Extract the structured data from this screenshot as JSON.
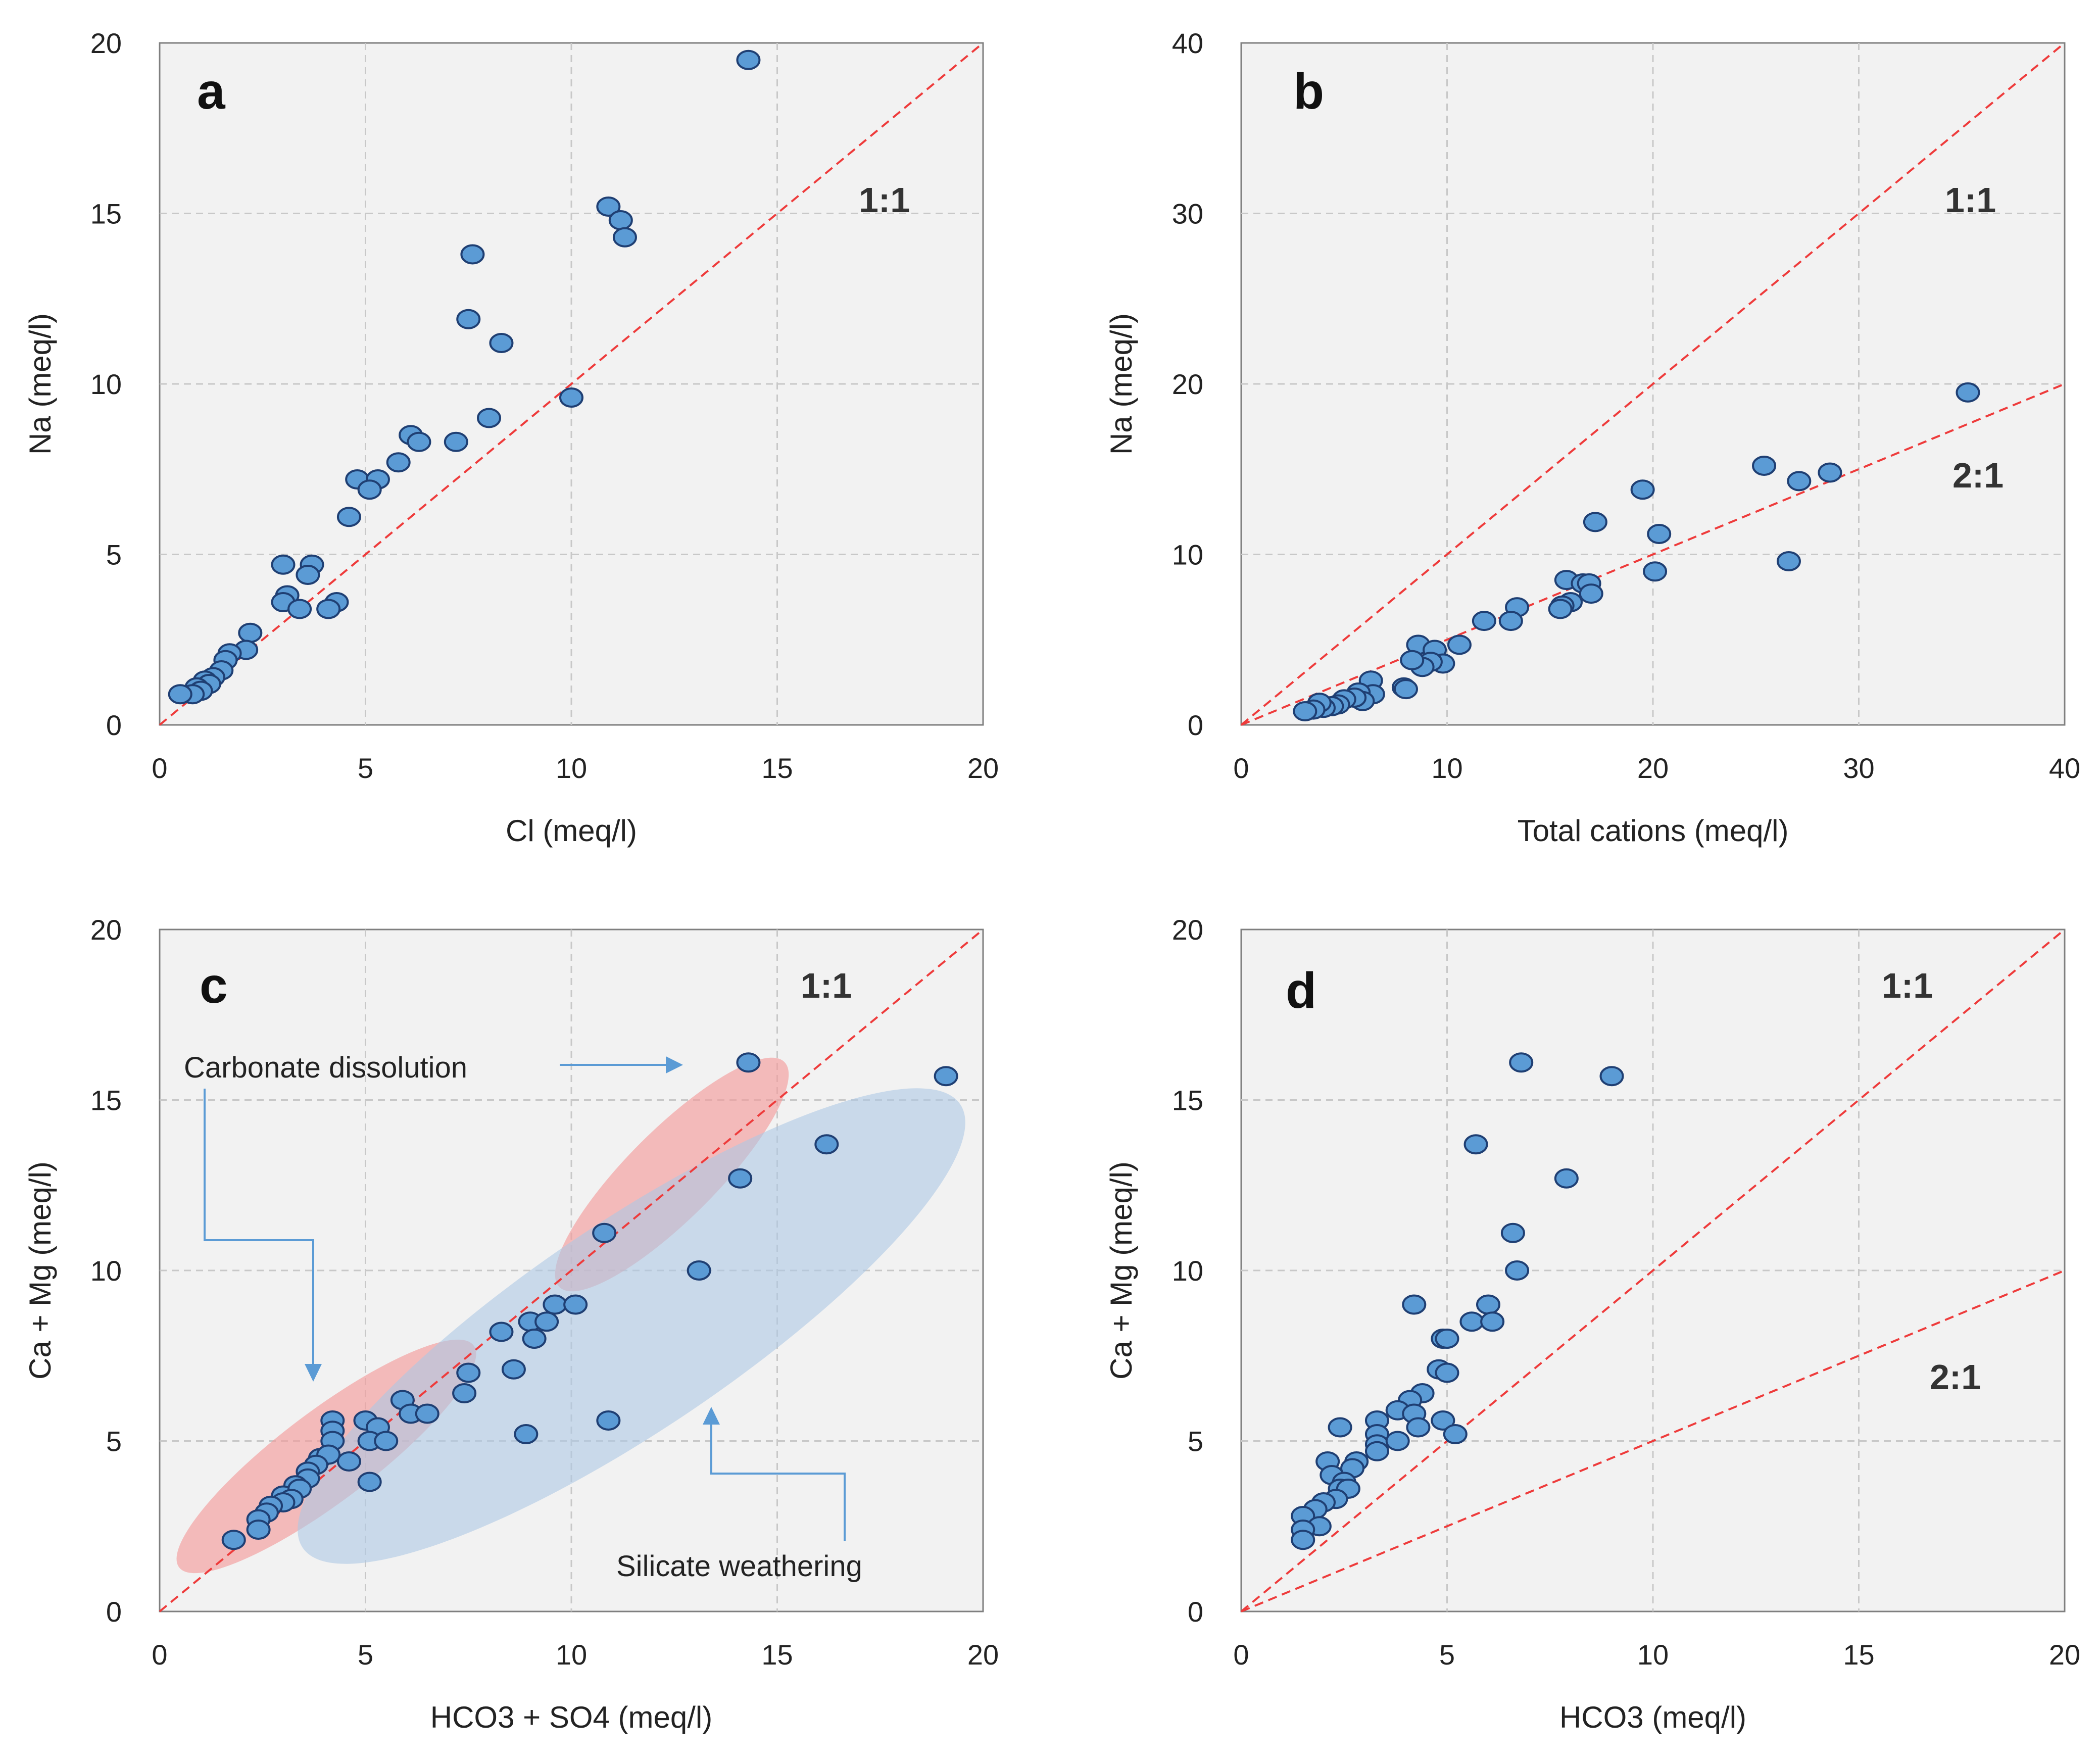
{
  "chart_data": [
    {
      "type": "scatter",
      "panel_label": "a",
      "xlabel": "Cl (meq/l)",
      "ylabel": "Na (meq/l)",
      "xlim": [
        0,
        20
      ],
      "ylim": [
        0,
        20
      ],
      "xticks": [
        "0",
        "5",
        "10",
        "15",
        "20"
      ],
      "yticks": [
        "0",
        "5",
        "10",
        "15",
        "20"
      ],
      "grid": true,
      "reference_lines": [
        {
          "label": "1:1",
          "slope": 1
        }
      ],
      "points": [
        [
          14.3,
          19.5
        ],
        [
          10.9,
          15.2
        ],
        [
          11.2,
          14.8
        ],
        [
          11.3,
          14.3
        ],
        [
          7.6,
          13.8
        ],
        [
          7.5,
          11.9
        ],
        [
          8.3,
          11.2
        ],
        [
          10.0,
          9.6
        ],
        [
          8.0,
          9.0
        ],
        [
          6.1,
          8.5
        ],
        [
          6.3,
          8.3
        ],
        [
          7.2,
          8.3
        ],
        [
          5.8,
          7.7
        ],
        [
          4.8,
          7.2
        ],
        [
          5.3,
          7.2
        ],
        [
          5.1,
          6.9
        ],
        [
          4.6,
          6.1
        ],
        [
          3.0,
          4.7
        ],
        [
          3.7,
          4.7
        ],
        [
          3.6,
          4.4
        ],
        [
          3.1,
          3.8
        ],
        [
          3.0,
          3.6
        ],
        [
          3.4,
          3.4
        ],
        [
          4.3,
          3.6
        ],
        [
          4.1,
          3.4
        ],
        [
          2.2,
          2.7
        ],
        [
          2.1,
          2.2
        ],
        [
          1.7,
          2.1
        ],
        [
          1.6,
          1.9
        ],
        [
          1.5,
          1.6
        ],
        [
          1.3,
          1.4
        ],
        [
          1.1,
          1.3
        ],
        [
          1.2,
          1.2
        ],
        [
          0.9,
          1.1
        ],
        [
          1.0,
          1.0
        ],
        [
          0.8,
          0.9
        ],
        [
          0.5,
          0.9
        ]
      ]
    },
    {
      "type": "scatter",
      "panel_label": "b",
      "xlabel": "Total cations (meq/l)",
      "ylabel": "Na (meq/l)",
      "xlim": [
        0,
        40
      ],
      "ylim": [
        0,
        40
      ],
      "xticks": [
        "0",
        "10",
        "20",
        "30",
        "40"
      ],
      "yticks": [
        "0",
        "10",
        "20",
        "30",
        "40"
      ],
      "grid": true,
      "reference_lines": [
        {
          "label": "1:1",
          "slope": 1
        },
        {
          "label": "2:1",
          "slope": 0.5
        }
      ],
      "points": [
        [
          35.3,
          19.5
        ],
        [
          25.4,
          15.2
        ],
        [
          28.6,
          14.8
        ],
        [
          27.1,
          14.3
        ],
        [
          19.5,
          13.8
        ],
        [
          17.2,
          11.9
        ],
        [
          20.3,
          11.2
        ],
        [
          26.6,
          9.6
        ],
        [
          20.1,
          9.0
        ],
        [
          15.8,
          8.5
        ],
        [
          16.6,
          8.3
        ],
        [
          16.9,
          8.3
        ],
        [
          17.0,
          7.7
        ],
        [
          16.0,
          7.2
        ],
        [
          15.6,
          7.0
        ],
        [
          15.5,
          6.8
        ],
        [
          13.4,
          6.9
        ],
        [
          13.1,
          6.1
        ],
        [
          11.8,
          6.1
        ],
        [
          10.6,
          4.7
        ],
        [
          8.6,
          4.7
        ],
        [
          9.4,
          4.4
        ],
        [
          9.8,
          3.6
        ],
        [
          9.2,
          3.7
        ],
        [
          8.8,
          3.4
        ],
        [
          8.3,
          3.8
        ],
        [
          7.9,
          2.2
        ],
        [
          8.0,
          2.1
        ],
        [
          6.3,
          2.6
        ],
        [
          6.4,
          1.8
        ],
        [
          5.7,
          1.9
        ],
        [
          5.9,
          1.4
        ],
        [
          5.5,
          1.6
        ],
        [
          5.0,
          1.5
        ],
        [
          4.7,
          1.2
        ],
        [
          4.4,
          1.1
        ],
        [
          4.0,
          1.0
        ],
        [
          3.8,
          1.3
        ],
        [
          3.5,
          0.9
        ],
        [
          3.1,
          0.8
        ]
      ]
    },
    {
      "type": "scatter",
      "panel_label": "c",
      "xlabel": "HCO3 + SO4 (meq/l)",
      "ylabel": "Ca + Mg (meq/l)",
      "xlim": [
        0,
        20
      ],
      "ylim": [
        0,
        20
      ],
      "xticks": [
        "0",
        "5",
        "10",
        "15",
        "20"
      ],
      "yticks": [
        "0",
        "5",
        "10",
        "15",
        "20"
      ],
      "grid": true,
      "reference_lines": [
        {
          "label": "1:1",
          "slope": 1
        }
      ],
      "annotations": [
        "Carbonate dissolution",
        "Silicate weathering"
      ],
      "points": [
        [
          14.3,
          16.1
        ],
        [
          19.1,
          15.7
        ],
        [
          16.2,
          13.7
        ],
        [
          14.1,
          12.7
        ],
        [
          10.8,
          11.1
        ],
        [
          13.1,
          10.0
        ],
        [
          9.6,
          9.0
        ],
        [
          10.1,
          9.0
        ],
        [
          9.0,
          8.5
        ],
        [
          9.4,
          8.5
        ],
        [
          8.3,
          8.2
        ],
        [
          9.1,
          8.0
        ],
        [
          8.6,
          7.1
        ],
        [
          7.5,
          7.0
        ],
        [
          7.4,
          6.4
        ],
        [
          5.9,
          6.2
        ],
        [
          6.1,
          5.8
        ],
        [
          6.5,
          5.8
        ],
        [
          4.2,
          5.6
        ],
        [
          5.0,
          5.6
        ],
        [
          10.9,
          5.6
        ],
        [
          5.3,
          5.4
        ],
        [
          4.2,
          5.3
        ],
        [
          4.2,
          5.0
        ],
        [
          5.1,
          5.0
        ],
        [
          5.5,
          5.0
        ],
        [
          8.9,
          5.2
        ],
        [
          3.9,
          4.5
        ],
        [
          4.1,
          4.6
        ],
        [
          4.6,
          4.4
        ],
        [
          3.8,
          4.3
        ],
        [
          3.6,
          4.1
        ],
        [
          3.6,
          3.9
        ],
        [
          5.1,
          3.8
        ],
        [
          3.3,
          3.7
        ],
        [
          3.0,
          3.4
        ],
        [
          3.4,
          3.6
        ],
        [
          3.2,
          3.3
        ],
        [
          3.0,
          3.2
        ],
        [
          2.7,
          3.1
        ],
        [
          2.6,
          2.9
        ],
        [
          2.4,
          2.7
        ],
        [
          2.4,
          2.4
        ],
        [
          1.8,
          2.1
        ]
      ]
    },
    {
      "type": "scatter",
      "panel_label": "d",
      "xlabel": "HCO3 (meq/l)",
      "ylabel": "Ca + Mg (meq/l)",
      "xlim": [
        0,
        20
      ],
      "ylim": [
        0,
        20
      ],
      "xticks": [
        "0",
        "5",
        "10",
        "15",
        "20"
      ],
      "yticks": [
        "0",
        "5",
        "10",
        "15",
        "20"
      ],
      "grid": true,
      "reference_lines": [
        {
          "label": "1:1",
          "slope": 1
        },
        {
          "label": "2:1",
          "slope": 0.5
        }
      ],
      "points": [
        [
          6.8,
          16.1
        ],
        [
          9.0,
          15.7
        ],
        [
          5.7,
          13.7
        ],
        [
          7.9,
          12.7
        ],
        [
          6.6,
          11.1
        ],
        [
          6.7,
          10.0
        ],
        [
          4.2,
          9.0
        ],
        [
          6.0,
          9.0
        ],
        [
          5.6,
          8.5
        ],
        [
          6.1,
          8.5
        ],
        [
          4.9,
          8.0
        ],
        [
          5.0,
          8.0
        ],
        [
          4.8,
          7.1
        ],
        [
          5.0,
          7.0
        ],
        [
          4.4,
          6.4
        ],
        [
          4.1,
          6.2
        ],
        [
          3.8,
          5.9
        ],
        [
          4.2,
          5.8
        ],
        [
          2.4,
          5.4
        ],
        [
          3.3,
          5.6
        ],
        [
          4.3,
          5.4
        ],
        [
          3.3,
          5.2
        ],
        [
          4.9,
          5.6
        ],
        [
          5.2,
          5.2
        ],
        [
          3.3,
          4.9
        ],
        [
          3.3,
          4.7
        ],
        [
          3.8,
          5.0
        ],
        [
          2.8,
          4.4
        ],
        [
          2.1,
          4.4
        ],
        [
          2.7,
          4.2
        ],
        [
          2.2,
          4.0
        ],
        [
          2.5,
          3.8
        ],
        [
          2.4,
          3.6
        ],
        [
          2.6,
          3.6
        ],
        [
          2.3,
          3.3
        ],
        [
          2.0,
          3.2
        ],
        [
          1.8,
          3.0
        ],
        [
          1.5,
          2.8
        ],
        [
          1.9,
          2.5
        ],
        [
          1.5,
          2.4
        ],
        [
          1.5,
          2.1
        ]
      ]
    }
  ]
}
